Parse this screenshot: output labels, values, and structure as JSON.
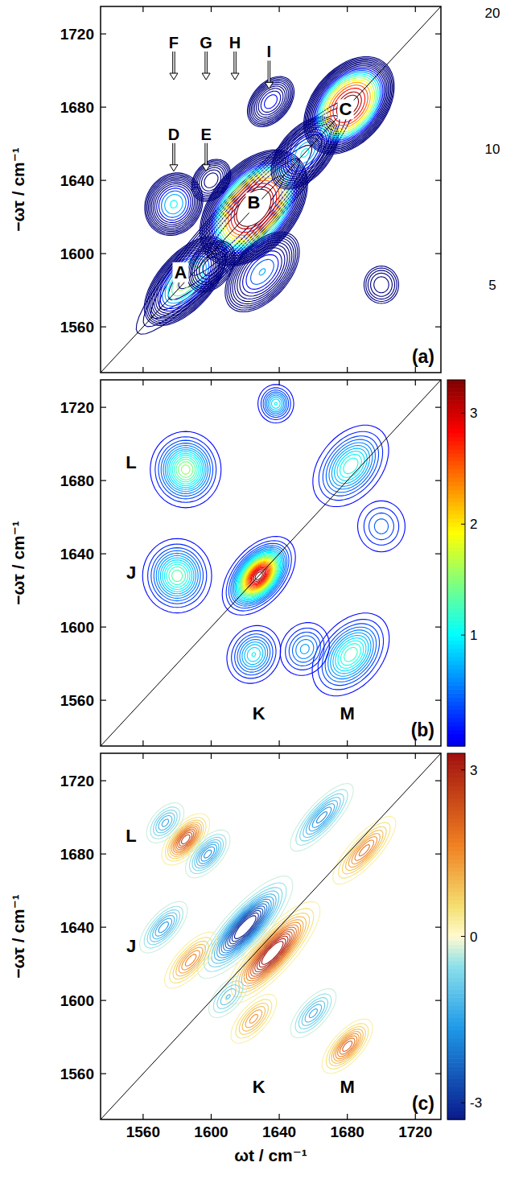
{
  "chart_data": [
    {
      "type": "contour",
      "title": "(a)",
      "y_label": "−ωτ / cm⁻¹",
      "xlim": [
        1535,
        1735
      ],
      "ylim": [
        1535,
        1735
      ],
      "xticks": [
        1560,
        1600,
        1640,
        1680,
        1720
      ],
      "yticks": [
        1560,
        1600,
        1640,
        1680,
        1720
      ],
      "tick_labels": "y",
      "colorbar": {
        "range": [
          3.2,
          20.7
        ],
        "ticks": [
          5,
          10,
          20
        ],
        "log": true
      },
      "peaks": [
        {
          "x": 1620,
          "y": 1620,
          "amplitude": 3,
          "width_diagonal": 55,
          "width_antidiagonal": 9
        },
        {
          "x": 1585,
          "y": 1585,
          "amplitude": 9,
          "width_diagonal": 14,
          "width_antidiagonal": 7
        },
        {
          "x": 1625,
          "y": 1625,
          "amplitude": 30,
          "width_diagonal": 14,
          "width_antidiagonal": 9
        },
        {
          "x": 1655,
          "y": 1655,
          "amplitude": 6,
          "width_diagonal": 12,
          "width_antidiagonal": 7
        },
        {
          "x": 1681,
          "y": 1681,
          "amplitude": 24,
          "width_diagonal": 12,
          "width_antidiagonal": 8
        },
        {
          "x": 1578,
          "y": 1627,
          "amplitude": 6,
          "width_diagonal": 9,
          "width_antidiagonal": 8
        },
        {
          "x": 1600,
          "y": 1640,
          "amplitude": 3,
          "width_diagonal": 8,
          "width_antidiagonal": 6
        },
        {
          "x": 1635,
          "y": 1683,
          "amplitude": 4,
          "width_diagonal": 9,
          "width_antidiagonal": 6
        },
        {
          "x": 1630,
          "y": 1590,
          "amplitude": 5,
          "width_diagonal": 14,
          "width_antidiagonal": 8
        },
        {
          "x": 1600,
          "y": 1593,
          "amplitude": 3,
          "width_diagonal": 10,
          "width_antidiagonal": 7
        },
        {
          "x": 1700,
          "y": 1583,
          "amplitude": 1.8,
          "width_diagonal": 8,
          "width_antidiagonal": 8
        }
      ],
      "annotations": [
        {
          "text": "A",
          "x": 1582,
          "y": 1590
        },
        {
          "text": "B",
          "x": 1625,
          "y": 1628
        },
        {
          "text": "C",
          "x": 1679,
          "y": 1679
        },
        {
          "text": "D",
          "x": 1578,
          "y": 1645,
          "marker": "arrow"
        },
        {
          "text": "E",
          "x": 1597,
          "y": 1645,
          "marker": "arrow"
        },
        {
          "text": "F",
          "x": 1578,
          "y": 1695,
          "marker": "arrow"
        },
        {
          "text": "G",
          "x": 1597,
          "y": 1695,
          "marker": "arrow"
        },
        {
          "text": "H",
          "x": 1614,
          "y": 1695,
          "marker": "arrow"
        },
        {
          "text": "I",
          "x": 1634,
          "y": 1690,
          "marker": "arrow"
        }
      ]
    },
    {
      "type": "contour",
      "title": "(b)",
      "y_label": "−ωτ / cm⁻¹",
      "xlim": [
        1535,
        1735
      ],
      "ylim": [
        1535,
        1735
      ],
      "xticks": [
        1560,
        1600,
        1640,
        1680,
        1720
      ],
      "yticks": [
        1560,
        1600,
        1640,
        1680,
        1720
      ],
      "tick_labels": "y",
      "colorbar": {
        "range": [
          0,
          3.3
        ],
        "ticks": [
          1,
          2,
          3
        ]
      },
      "peaks": [
        {
          "x": 1628,
          "y": 1628,
          "amplitude": 3.3,
          "width_diagonal": 10,
          "width_antidiagonal": 6
        },
        {
          "x": 1580,
          "y": 1628,
          "amplitude": 1.4,
          "width_diagonal": 9,
          "width_antidiagonal": 9
        },
        {
          "x": 1585,
          "y": 1686,
          "amplitude": 1.6,
          "width_diagonal": 9,
          "width_antidiagonal": 9
        },
        {
          "x": 1682,
          "y": 1688,
          "amplitude": 1.2,
          "width_diagonal": 12,
          "width_antidiagonal": 8
        },
        {
          "x": 1625,
          "y": 1585,
          "amplitude": 1.0,
          "width_diagonal": 8,
          "width_antidiagonal": 7
        },
        {
          "x": 1682,
          "y": 1585,
          "amplitude": 1.3,
          "width_diagonal": 12,
          "width_antidiagonal": 8
        },
        {
          "x": 1655,
          "y": 1588,
          "amplitude": 0.7,
          "width_diagonal": 8,
          "width_antidiagonal": 7
        },
        {
          "x": 1638,
          "y": 1722,
          "amplitude": 1.0,
          "width_diagonal": 5,
          "width_antidiagonal": 5
        },
        {
          "x": 1700,
          "y": 1655,
          "amplitude": 0.5,
          "width_diagonal": 8,
          "width_antidiagonal": 8
        }
      ],
      "annotations": [
        {
          "text": "L",
          "x": 1553,
          "y": 1690
        },
        {
          "text": "J",
          "x": 1553,
          "y": 1630
        },
        {
          "text": "K",
          "x": 1628,
          "y": 1553
        },
        {
          "text": "M",
          "x": 1680,
          "y": 1553
        }
      ]
    },
    {
      "type": "contour",
      "title": "(c)",
      "x_label": "ωt / cm⁻¹",
      "y_label": "−ωτ / cm⁻¹",
      "xlim": [
        1535,
        1735
      ],
      "ylim": [
        1535,
        1735
      ],
      "xticks": [
        1560,
        1600,
        1640,
        1680,
        1720
      ],
      "yticks": [
        1560,
        1600,
        1640,
        1680,
        1720
      ],
      "colorbar": {
        "range": [
          -3.3,
          3.3
        ],
        "ticks": [
          -3,
          0,
          3
        ]
      },
      "peaks": [
        {
          "x": 1620,
          "y": 1640,
          "amplitude": -3.8,
          "width_diagonal": 16,
          "width_antidiagonal": 5
        },
        {
          "x": 1636,
          "y": 1626,
          "amplitude": 3.8,
          "width_diagonal": 16,
          "width_antidiagonal": 5
        },
        {
          "x": 1585,
          "y": 1688,
          "amplitude": 2.8,
          "width_diagonal": 8,
          "width_antidiagonal": 4
        },
        {
          "x": 1598,
          "y": 1680,
          "amplitude": -2.0,
          "width_diagonal": 8,
          "width_antidiagonal": 4
        },
        {
          "x": 1573,
          "y": 1697,
          "amplitude": -1.5,
          "width_diagonal": 7,
          "width_antidiagonal": 4
        },
        {
          "x": 1572,
          "y": 1640,
          "amplitude": -1.8,
          "width_diagonal": 9,
          "width_antidiagonal": 4
        },
        {
          "x": 1588,
          "y": 1622,
          "amplitude": 1.8,
          "width_diagonal": 10,
          "width_antidiagonal": 4
        },
        {
          "x": 1665,
          "y": 1700,
          "amplitude": -2.0,
          "width_diagonal": 12,
          "width_antidiagonal": 4
        },
        {
          "x": 1690,
          "y": 1682,
          "amplitude": 2.0,
          "width_diagonal": 12,
          "width_antidiagonal": 4
        },
        {
          "x": 1660,
          "y": 1593,
          "amplitude": -1.5,
          "width_diagonal": 9,
          "width_antidiagonal": 4
        },
        {
          "x": 1680,
          "y": 1575,
          "amplitude": 2.3,
          "width_diagonal": 9,
          "width_antidiagonal": 4
        },
        {
          "x": 1625,
          "y": 1590,
          "amplitude": 1.5,
          "width_diagonal": 9,
          "width_antidiagonal": 4
        },
        {
          "x": 1610,
          "y": 1602,
          "amplitude": -1.2,
          "width_diagonal": 8,
          "width_antidiagonal": 4
        }
      ],
      "annotations": [
        {
          "text": "L",
          "x": 1553,
          "y": 1690
        },
        {
          "text": "J",
          "x": 1553,
          "y": 1630
        },
        {
          "text": "K",
          "x": 1628,
          "y": 1553
        },
        {
          "text": "M",
          "x": 1680,
          "y": 1553
        }
      ]
    }
  ]
}
